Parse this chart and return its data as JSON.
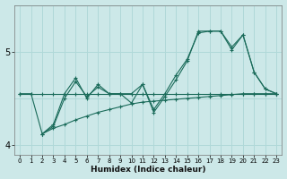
{
  "xlabel": "Humidex (Indice chaleur)",
  "bg_color": "#cce8e8",
  "line_color": "#1a6b5a",
  "grid_color": "#b0d8d8",
  "xlim": [
    -0.5,
    23.5
  ],
  "ylim": [
    3.9,
    5.5
  ],
  "yticks": [
    4,
    5
  ],
  "ytick_labels": [
    "4",
    "5"
  ],
  "xticks": [
    0,
    1,
    2,
    3,
    4,
    5,
    6,
    7,
    8,
    9,
    10,
    11,
    12,
    13,
    14,
    15,
    16,
    17,
    18,
    19,
    20,
    21,
    22,
    23
  ],
  "series": {
    "flat": {
      "x": [
        0,
        1,
        2,
        3,
        4,
        5,
        6,
        7,
        8,
        9,
        10,
        11,
        12,
        13,
        14,
        15,
        16,
        17,
        18,
        19,
        20,
        21,
        22,
        23
      ],
      "y": [
        4.55,
        4.55,
        4.55,
        4.55,
        4.55,
        4.55,
        4.55,
        4.55,
        4.55,
        4.55,
        4.55,
        4.55,
        4.55,
        4.55,
        4.55,
        4.55,
        4.55,
        4.55,
        4.55,
        4.55,
        4.55,
        4.55,
        4.55,
        4.55
      ]
    },
    "rising": {
      "x": [
        2,
        3,
        4,
        5,
        6,
        7,
        8,
        9,
        10,
        11,
        12,
        13,
        14,
        15,
        16,
        17,
        18,
        19,
        20,
        21,
        22,
        23
      ],
      "y": [
        4.12,
        4.18,
        4.22,
        4.27,
        4.31,
        4.35,
        4.38,
        4.41,
        4.44,
        4.46,
        4.47,
        4.48,
        4.49,
        4.5,
        4.51,
        4.52,
        4.53,
        4.54,
        4.55,
        4.55,
        4.55,
        4.55
      ]
    },
    "jagged": {
      "x": [
        2,
        3,
        4,
        5,
        6,
        7,
        8,
        9,
        10,
        11,
        12,
        13,
        14,
        15,
        16,
        17,
        18,
        19,
        20,
        21,
        22,
        23
      ],
      "y": [
        4.12,
        4.22,
        4.55,
        4.72,
        4.5,
        4.65,
        4.55,
        4.55,
        4.45,
        4.65,
        4.35,
        4.52,
        4.7,
        4.9,
        5.22,
        5.22,
        5.22,
        5.02,
        5.18,
        4.78,
        4.6,
        4.55
      ]
    },
    "smooth": {
      "x": [
        0,
        1,
        2,
        3,
        4,
        5,
        6,
        7,
        8,
        9,
        10,
        11,
        12,
        13,
        14,
        15,
        16,
        17,
        18,
        19,
        20,
        21,
        22,
        23
      ],
      "y": [
        4.55,
        4.55,
        4.12,
        4.2,
        4.5,
        4.68,
        4.52,
        4.62,
        4.55,
        4.55,
        4.55,
        4.65,
        4.38,
        4.55,
        4.75,
        4.92,
        5.2,
        5.22,
        5.22,
        5.05,
        5.18,
        4.78,
        4.6,
        4.55
      ]
    }
  }
}
